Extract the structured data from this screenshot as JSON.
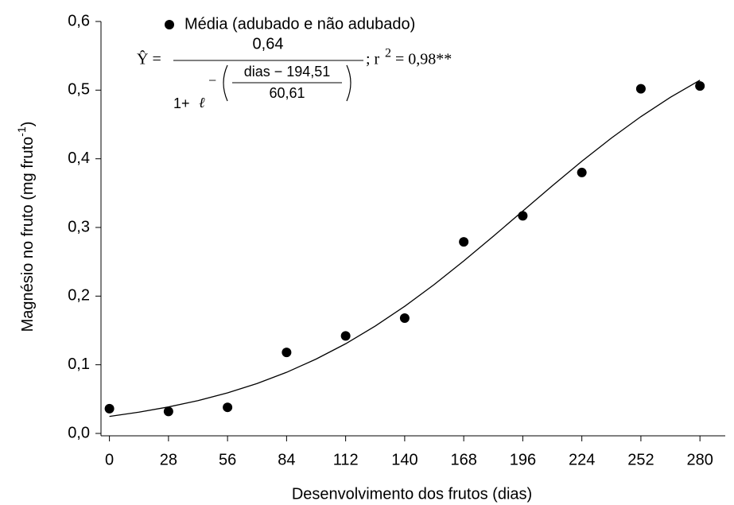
{
  "chart_data": {
    "type": "scatter",
    "y_label": [
      "Magnésio no fruto (mg fruto",
      "-1",
      ")"
    ],
    "x_label": "Desenvolvimento dos frutos (dias)",
    "series": [
      {
        "name": "Média (adubado e não adubado)",
        "color": "#000000",
        "x": [
          0,
          28,
          56,
          84,
          112,
          140,
          168,
          196,
          224,
          252,
          280
        ],
        "values": [
          0.036,
          0.032,
          0.038,
          0.118,
          0.142,
          0.168,
          0.279,
          0.317,
          0.38,
          0.502,
          0.506
        ]
      }
    ],
    "curve": {
      "color": "#000000",
      "x": [
        0,
        14,
        28,
        42,
        56,
        70,
        84,
        98,
        112,
        126,
        140,
        154,
        168,
        182,
        196,
        210,
        224,
        238,
        252,
        266,
        280
      ],
      "values": [
        0.0248,
        0.031,
        0.0386,
        0.0478,
        0.0591,
        0.0727,
        0.089,
        0.1083,
        0.1306,
        0.1563,
        0.1851,
        0.2169,
        0.2512,
        0.2871,
        0.3239,
        0.3607,
        0.3964,
        0.4302,
        0.4614,
        0.4896,
        0.5145
      ]
    },
    "equation": {
      "lhs": "Ŷ =",
      "numerator": "0,64",
      "one_plus": "1+",
      "base": "ℓ",
      "minus": "−",
      "inner_numerator": "dias − 194,51",
      "inner_denominator": "60,61",
      "r_label": "; r",
      "r_exp": "2",
      "r_value": "= 0,98**"
    },
    "xlim": [
      -4,
      292
    ],
    "ylim": [
      0,
      0.6
    ],
    "xticks": [
      0,
      28,
      56,
      84,
      112,
      140,
      168,
      196,
      224,
      252,
      280
    ],
    "yticks": [
      {
        "value": 0,
        "label": "0,0"
      },
      {
        "value": 0.1,
        "label": "0,1"
      },
      {
        "value": 0.2,
        "label": "0,2"
      },
      {
        "value": 0.3,
        "label": "0,3"
      },
      {
        "value": 0.4,
        "label": "0,4"
      },
      {
        "value": 0.5,
        "label": "0,5"
      },
      {
        "value": 0.6,
        "label": "0,6"
      }
    ]
  }
}
